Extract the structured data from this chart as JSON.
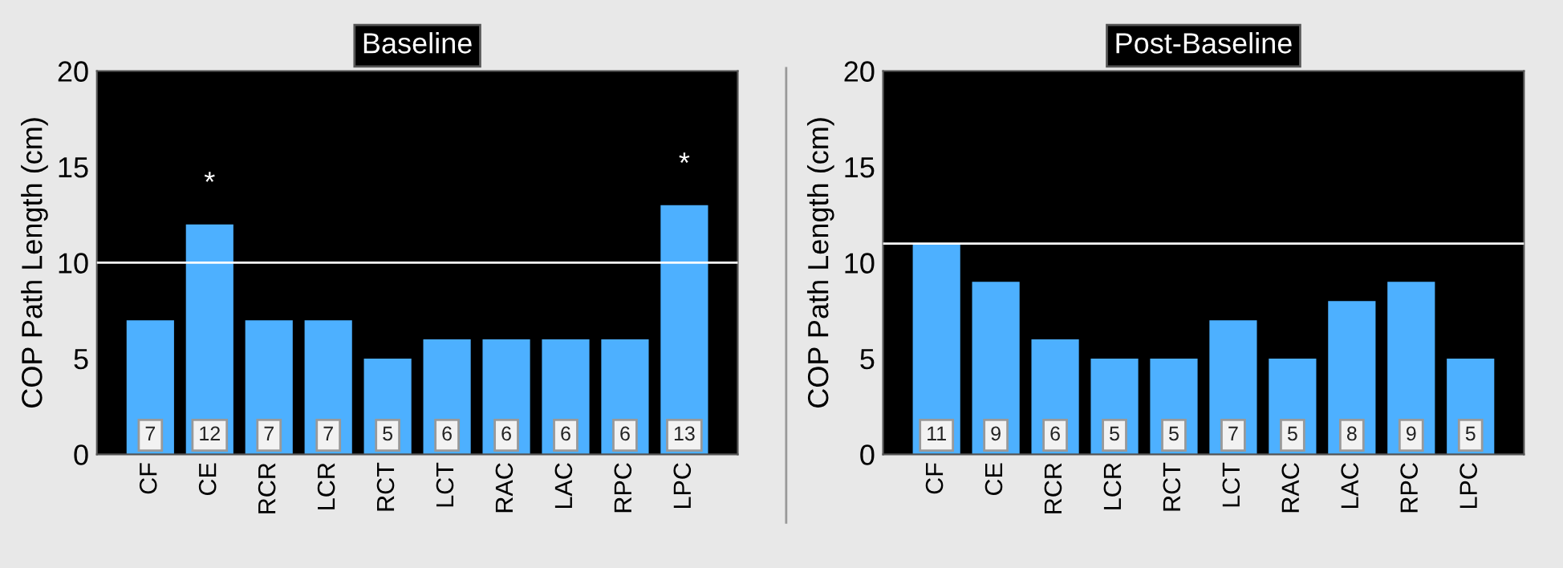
{
  "chart_data": [
    {
      "type": "bar",
      "title": "Baseline",
      "ylabel": "COP Path Length (cm)",
      "categories": [
        "CF",
        "CE",
        "RCR",
        "LCR",
        "RCT",
        "LCT",
        "RAC",
        "LAC",
        "RPC",
        "LPC"
      ],
      "values": [
        7,
        12,
        7,
        7,
        5,
        6,
        6,
        6,
        6,
        13
      ],
      "color": "#4db0ff",
      "ylim": [
        0,
        20
      ],
      "yticks": [
        0,
        5,
        10,
        15,
        20
      ],
      "grid": false,
      "legend": false,
      "data_labels": true,
      "ref_lines": [
        {
          "axis": "y",
          "value": 10,
          "color": "#ffffff"
        }
      ],
      "annotations": [
        {
          "text": "*",
          "x": "CE",
          "y": 12
        },
        {
          "text": "*",
          "x": "LPC",
          "y": 13
        }
      ]
    },
    {
      "type": "bar",
      "title": "Post-Baseline",
      "ylabel": "COP Path Length (cm)",
      "categories": [
        "CF",
        "CE",
        "RCR",
        "LCR",
        "RCT",
        "LCT",
        "RAC",
        "LAC",
        "RPC",
        "LPC"
      ],
      "values": [
        11,
        9,
        6,
        5,
        5,
        7,
        5,
        8,
        9,
        5
      ],
      "color": "#4db0ff",
      "ylim": [
        0,
        20
      ],
      "yticks": [
        0,
        5,
        10,
        15,
        20
      ],
      "grid": false,
      "legend": false,
      "data_labels": true,
      "ref_lines": [
        {
          "axis": "y",
          "value": 11,
          "color": "#ffffff"
        }
      ]
    }
  ]
}
